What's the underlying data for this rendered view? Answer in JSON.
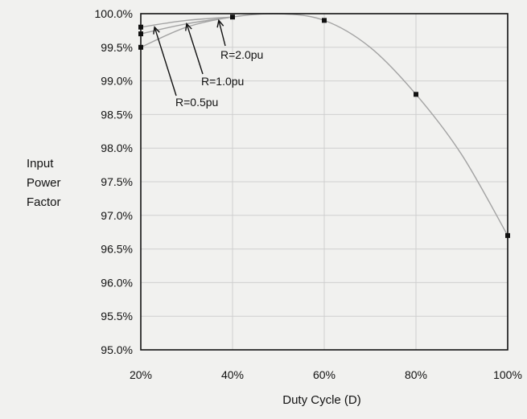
{
  "chart_data": {
    "type": "line",
    "xlabel": "Duty Cycle (D)",
    "ylabel_lines": [
      "Input",
      "Power",
      "Factor"
    ],
    "x_ticks": [
      0.2,
      0.4,
      0.6,
      0.8,
      1.0
    ],
    "x_tick_labels": [
      "20%",
      "40%",
      "60%",
      "80%",
      "100%"
    ],
    "y_ticks": [
      95.0,
      95.5,
      96.0,
      96.5,
      97.0,
      97.5,
      98.0,
      98.5,
      99.0,
      99.5,
      100.0
    ],
    "y_tick_labels": [
      "95.0%",
      "95.5%",
      "96.0%",
      "96.5%",
      "97.0%",
      "97.5%",
      "98.0%",
      "98.5%",
      "99.0%",
      "99.5%",
      "100.0%"
    ],
    "xlim": [
      0.2,
      1.0
    ],
    "ylim": [
      95.0,
      100.0
    ],
    "grid": true,
    "series": [
      {
        "name": "R=0.5pu",
        "x": [
          0.2,
          0.3,
          0.4,
          0.5,
          0.6,
          0.7,
          0.8,
          0.9,
          1.0
        ],
        "y": [
          99.5,
          99.8,
          99.95,
          100.0,
          99.9,
          99.5,
          98.8,
          97.9,
          96.7
        ],
        "markers": [
          0.2,
          0.4,
          0.6,
          0.8,
          1.0
        ]
      },
      {
        "name": "R=1.0pu",
        "x": [
          0.2,
          0.3,
          0.4
        ],
        "y": [
          99.7,
          99.85,
          99.95
        ],
        "markers": [
          0.2
        ]
      },
      {
        "name": "R=2.0pu",
        "x": [
          0.2,
          0.3,
          0.4
        ],
        "y": [
          99.8,
          99.9,
          99.95
        ],
        "markers": [
          0.2
        ]
      }
    ],
    "annotations": [
      {
        "text": "R=2.0pu",
        "series": "R=2.0pu",
        "point_x": 0.37,
        "point_y": 99.9
      },
      {
        "text": "R=1.0pu",
        "series": "R=1.0pu",
        "point_x": 0.3,
        "point_y": 99.85
      },
      {
        "text": "R=0.5pu",
        "series": "R=0.5pu",
        "point_x": 0.23,
        "point_y": 99.8
      }
    ],
    "colors": {
      "curve": "#a3a3a3",
      "frame": "#111111",
      "grid": "#cfcfcf",
      "marker": "#111111"
    }
  }
}
